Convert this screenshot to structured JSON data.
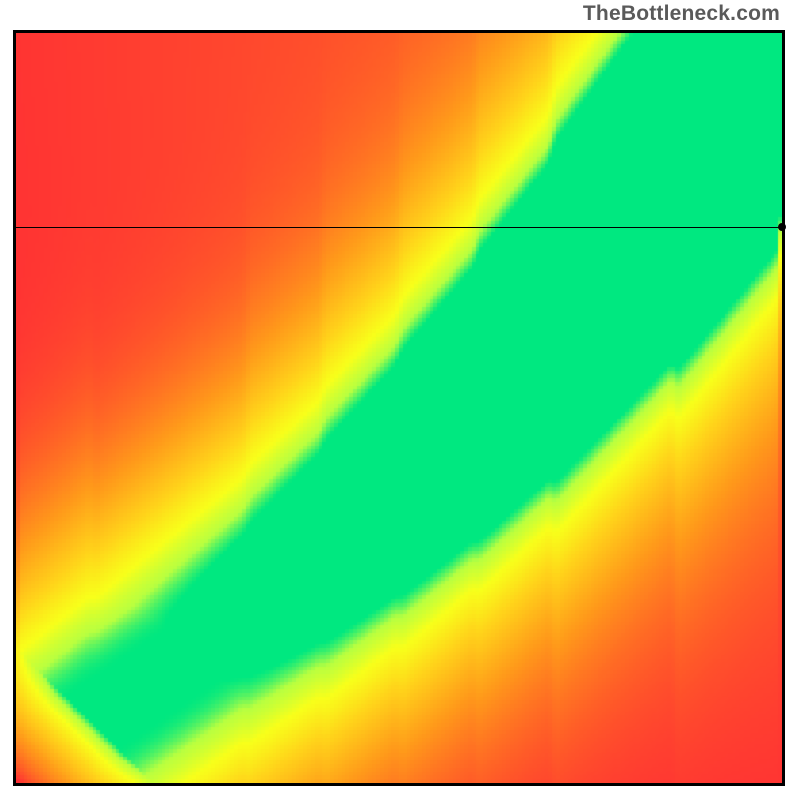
{
  "watermark": {
    "text": "TheBottleneck.com",
    "color": "#5a5a5a",
    "fontsize": 21,
    "fontweight": 600
  },
  "chart": {
    "type": "heatmap",
    "frame": {
      "outer_width": 772,
      "outer_height": 756,
      "border_color": "#000000",
      "border_width": 3,
      "inner_width": 766,
      "inner_height": 750,
      "background_color": "#000000"
    },
    "resolution": {
      "cols": 200,
      "rows": 200
    },
    "xlim": [
      0,
      1
    ],
    "ylim": [
      0,
      1
    ],
    "gradient_stops": [
      {
        "t": 0.0,
        "color": "#ff1a3a"
      },
      {
        "t": 0.25,
        "color": "#ff5a28"
      },
      {
        "t": 0.5,
        "color": "#ff9a1a"
      },
      {
        "t": 0.72,
        "color": "#ffd41a"
      },
      {
        "t": 0.86,
        "color": "#f8ff1a"
      },
      {
        "t": 0.95,
        "color": "#b8ff40"
      },
      {
        "t": 1.0,
        "color": "#00e880"
      }
    ],
    "ridge": {
      "comment": "Green ridge y = f(x); list of (x, y) control points in normalized [0,1] coords. Linear interp between points.",
      "points": [
        [
          0.0,
          0.0
        ],
        [
          0.1,
          0.08
        ],
        [
          0.2,
          0.15
        ],
        [
          0.3,
          0.22
        ],
        [
          0.4,
          0.3
        ],
        [
          0.5,
          0.39
        ],
        [
          0.6,
          0.49
        ],
        [
          0.7,
          0.6
        ],
        [
          0.78,
          0.7
        ],
        [
          0.86,
          0.8
        ],
        [
          0.93,
          0.9
        ],
        [
          1.0,
          1.0
        ]
      ],
      "half_width_along_normal": 0.045,
      "falloff_scale": 0.34
    },
    "global_radial": {
      "comment": "Background warmth increases toward upper-right even away from ridge",
      "weight": 0.35
    },
    "reference_line": {
      "y": 0.742,
      "color": "#000000",
      "width": 1,
      "marker_at_x": 1.0,
      "marker_radius": 4
    },
    "pixelation_note": "Render at resolution.cols x resolution.rows then nearest-neighbor upscale to inner size"
  }
}
